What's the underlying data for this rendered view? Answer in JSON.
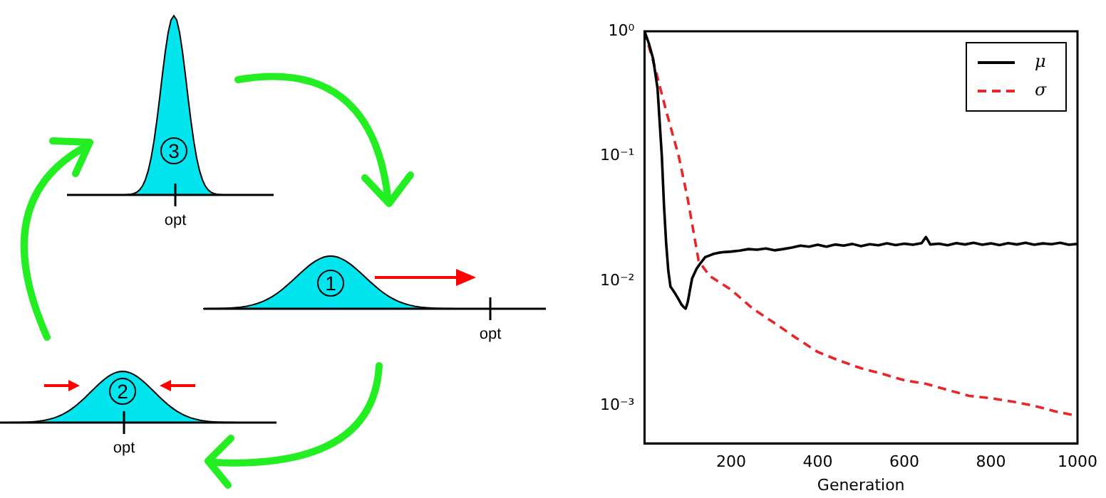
{
  "chart_data": [
    {
      "type": "other",
      "annotations": [
        "3",
        "opt",
        "1",
        "opt",
        "2",
        "opt"
      ]
    },
    {
      "type": "line",
      "xlabel": "Generation",
      "xlim": [
        0,
        1000
      ],
      "xticks": [
        200,
        400,
        600,
        800,
        1000
      ],
      "ylim": [
        0.0005,
        1
      ],
      "log": "y",
      "yticks": [
        {
          "value": 1,
          "label": "10⁰"
        },
        {
          "value": 0.1,
          "label": "10⁻¹"
        },
        {
          "value": 0.01,
          "label": "10⁻²"
        },
        {
          "value": 0.001,
          "label": "10⁻³"
        }
      ],
      "grid": false,
      "legend": "top right",
      "marker": "none",
      "series": [
        {
          "name": "μ",
          "color": "#000000",
          "line_style": "solid",
          "x": [
            0,
            10,
            20,
            30,
            40,
            45,
            50,
            55,
            60,
            65,
            70,
            75,
            80,
            85,
            90,
            95,
            100,
            105,
            110,
            120,
            130,
            140,
            150,
            160,
            170,
            180,
            200,
            220,
            240,
            260,
            280,
            300,
            320,
            340,
            360,
            380,
            400,
            420,
            440,
            460,
            480,
            500,
            520,
            540,
            560,
            580,
            600,
            620,
            640,
            650,
            660,
            680,
            700,
            720,
            740,
            760,
            780,
            800,
            820,
            840,
            860,
            880,
            900,
            920,
            940,
            960,
            980,
            1000
          ],
          "values": [
            1,
            0.8,
            0.6,
            0.35,
            0.1,
            0.04,
            0.02,
            0.012,
            0.009,
            0.0085,
            0.008,
            0.0075,
            0.007,
            0.0065,
            0.0062,
            0.006,
            0.0068,
            0.0085,
            0.0105,
            0.0125,
            0.014,
            0.0155,
            0.016,
            0.0165,
            0.0168,
            0.017,
            0.0172,
            0.0175,
            0.018,
            0.0178,
            0.0182,
            0.0176,
            0.018,
            0.0185,
            0.0192,
            0.0188,
            0.0195,
            0.0188,
            0.0196,
            0.0192,
            0.0198,
            0.019,
            0.0197,
            0.0193,
            0.02,
            0.0194,
            0.0199,
            0.0195,
            0.0201,
            0.0225,
            0.0196,
            0.0199,
            0.0193,
            0.0201,
            0.0196,
            0.0202,
            0.0195,
            0.02,
            0.0194,
            0.0201,
            0.0196,
            0.0202,
            0.0195,
            0.02,
            0.0197,
            0.0202,
            0.0195,
            0.0198
          ]
        },
        {
          "name": "σ",
          "color": "#e8262a",
          "line_style": "dashed",
          "x": [
            0,
            25,
            50,
            79,
            100,
            125,
            150,
            200,
            250,
            300,
            350,
            400,
            450,
            500,
            550,
            600,
            650,
            700,
            750,
            800,
            850,
            900,
            950,
            1000
          ],
          "values": [
            1,
            0.5,
            0.23,
            0.1,
            0.045,
            0.0145,
            0.011,
            0.0085,
            0.006,
            0.0046,
            0.0035,
            0.0027,
            0.0023,
            0.002,
            0.0018,
            0.0016,
            0.0015,
            0.00134,
            0.0012,
            0.00115,
            0.00108,
            0.001,
            0.0009,
            0.00083
          ]
        }
      ]
    }
  ]
}
